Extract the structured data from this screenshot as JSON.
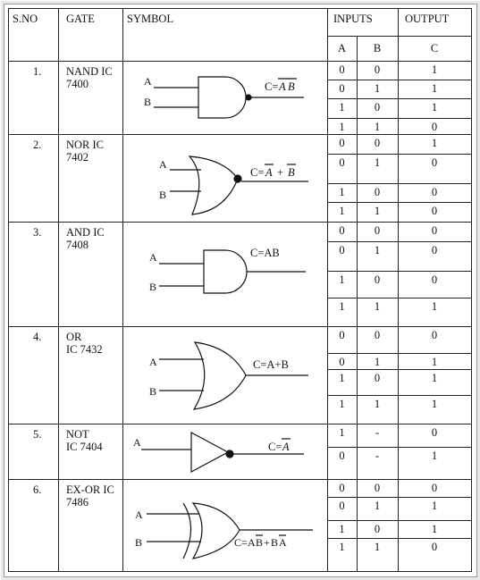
{
  "headers": {
    "sno": "S.NO",
    "gate": "GATE",
    "symbol": "SYMBOL",
    "inputs": "INPUTS",
    "output": "OUTPUT",
    "a": "A",
    "b": "B",
    "c": "C"
  },
  "rows": [
    {
      "sno": "1.",
      "gate": "NAND IC\n7400",
      "labels": {
        "a": "A",
        "b": "B"
      },
      "truth": [
        [
          "0",
          "0",
          "1"
        ],
        [
          "0",
          "1",
          "1"
        ],
        [
          "1",
          "0",
          "1"
        ],
        [
          "1",
          "1",
          "0"
        ]
      ]
    },
    {
      "sno": "2.",
      "gate": "NOR  IC\n7402",
      "labels": {
        "a": "A",
        "b": "B"
      },
      "truth": [
        [
          "0",
          "0",
          "1"
        ],
        [
          "0",
          "1",
          "0"
        ],
        [
          "1",
          "0",
          "0"
        ],
        [
          "1",
          "1",
          "0"
        ]
      ]
    },
    {
      "sno": "3.",
      "gate": "AND   IC\n7408",
      "labels": {
        "a": "A",
        "b": "B"
      },
      "expr": "C=AB",
      "truth": [
        [
          "0",
          "0",
          "0"
        ],
        [
          "0",
          "1",
          "0"
        ],
        [
          "1",
          "0",
          "0"
        ],
        [
          "1",
          "1",
          "1"
        ]
      ]
    },
    {
      "sno": "4.",
      "gate": "OR\nIC 7432",
      "labels": {
        "a": "A",
        "b": "B"
      },
      "expr": "C=A+B",
      "truth": [
        [
          "0",
          "0",
          "0"
        ],
        [
          "0",
          "1",
          "1"
        ],
        [
          "1",
          "0",
          "1"
        ],
        [
          "1",
          "1",
          "1"
        ]
      ]
    },
    {
      "sno": "5.",
      "gate": "NOT\nIC 7404",
      "labels": {
        "a": "A"
      },
      "truth": [
        [
          "1",
          "-",
          "0"
        ],
        [
          "0",
          "-",
          "1"
        ]
      ]
    },
    {
      "sno": "6.",
      "gate": "EX-OR IC\n7486",
      "labels": {
        "a": "A",
        "b": "B"
      },
      "truth": [
        [
          "0",
          "0",
          "0"
        ],
        [
          "0",
          "1",
          "1"
        ],
        [
          "1",
          "0",
          "1"
        ],
        [
          "1",
          "1",
          "0"
        ]
      ]
    }
  ],
  "formulas": {
    "nand": {
      "prefix": "C=",
      "v1": "A",
      "v2": "B"
    },
    "nor": {
      "prefix": "C=",
      "v1": "A",
      "op": "+",
      "v2": "B"
    },
    "not": {
      "prefix": "C=",
      "v1": "A"
    },
    "xor": {
      "prefix": "C=",
      "t1a": "A",
      "t1b": "B",
      "op": "+",
      "t2a": "B",
      "t2b": "A"
    }
  }
}
